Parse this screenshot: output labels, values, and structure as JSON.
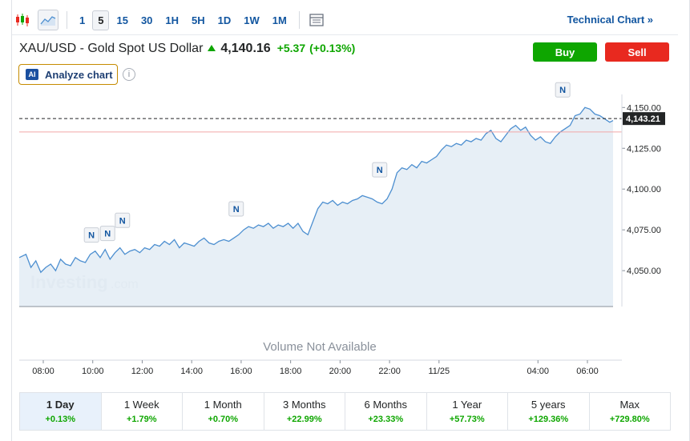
{
  "toolbar": {
    "timeframes": [
      "1",
      "5",
      "15",
      "30",
      "1H",
      "5H",
      "1D",
      "1W",
      "1M"
    ],
    "active_timeframe": "5",
    "technical_chart_label": "Technical Chart »"
  },
  "header": {
    "instrument": "XAU/USD - Gold Spot US Dollar",
    "price": "4,140.16",
    "change": "+5.37",
    "change_pct": "(+0.13%)",
    "buy_label": "Buy",
    "sell_label": "Sell",
    "ai_badge": "AI",
    "analyze_label": "Analyze chart",
    "info_icon": "i"
  },
  "colors": {
    "up": "#0ea600",
    "down": "#e8291f",
    "line": "#4d8fd0",
    "area": "#e3ecf5",
    "accent": "#1256a0"
  },
  "chart_data": {
    "type": "area",
    "x_ticks": [
      "08:00",
      "10:00",
      "12:00",
      "14:00",
      "16:00",
      "18:00",
      "20:00",
      "22:00",
      "11/25",
      "04:00",
      "06:00"
    ],
    "x_tick_hours": [
      0,
      2,
      4,
      6,
      8,
      10,
      12,
      14,
      16,
      20,
      22
    ],
    "y_ticks": [
      4050,
      4075,
      4100,
      4125,
      4150
    ],
    "y_tick_labels": [
      "4,050.00",
      "4,075.00",
      "4,100.00",
      "4,125.00",
      "4,150.00"
    ],
    "ylim": [
      4028,
      4158
    ],
    "current_price": 4143.21,
    "current_price_label": "4,143.21",
    "reference_line": 4135,
    "watermark": [
      "Investing",
      ".com"
    ],
    "volume_text": "Volume Not Available",
    "news_marker_label": "N",
    "news_markers": [
      [
        1.95,
        4063
      ],
      [
        2.6,
        4064
      ],
      [
        3.2,
        4072
      ],
      [
        7.8,
        4079
      ],
      [
        13.6,
        4103
      ],
      [
        21.0,
        4152
      ]
    ],
    "series": [
      {
        "points": [
          [
            -0.9,
            4058
          ],
          [
            -0.7,
            4060
          ],
          [
            -0.5,
            4052
          ],
          [
            -0.3,
            4056
          ],
          [
            -0.1,
            4049
          ],
          [
            0.1,
            4052
          ],
          [
            0.3,
            4054
          ],
          [
            0.5,
            4050
          ],
          [
            0.7,
            4057
          ],
          [
            0.9,
            4054
          ],
          [
            1.1,
            4053
          ],
          [
            1.3,
            4058
          ],
          [
            1.5,
            4056
          ],
          [
            1.7,
            4055
          ],
          [
            1.9,
            4060
          ],
          [
            2.1,
            4062
          ],
          [
            2.3,
            4058
          ],
          [
            2.5,
            4063
          ],
          [
            2.7,
            4057
          ],
          [
            2.9,
            4061
          ],
          [
            3.1,
            4064
          ],
          [
            3.3,
            4060
          ],
          [
            3.5,
            4062
          ],
          [
            3.7,
            4063
          ],
          [
            3.9,
            4061
          ],
          [
            4.1,
            4064
          ],
          [
            4.3,
            4063
          ],
          [
            4.5,
            4066
          ],
          [
            4.7,
            4065
          ],
          [
            4.9,
            4068
          ],
          [
            5.1,
            4066
          ],
          [
            5.3,
            4069
          ],
          [
            5.5,
            4064
          ],
          [
            5.7,
            4067
          ],
          [
            5.9,
            4066
          ],
          [
            6.1,
            4065
          ],
          [
            6.3,
            4068
          ],
          [
            6.5,
            4070
          ],
          [
            6.7,
            4067
          ],
          [
            6.9,
            4066
          ],
          [
            7.1,
            4068
          ],
          [
            7.3,
            4069
          ],
          [
            7.5,
            4068
          ],
          [
            7.7,
            4070
          ],
          [
            7.9,
            4072
          ],
          [
            8.1,
            4075
          ],
          [
            8.3,
            4077
          ],
          [
            8.5,
            4076
          ],
          [
            8.7,
            4078
          ],
          [
            8.9,
            4077
          ],
          [
            9.1,
            4079
          ],
          [
            9.3,
            4076
          ],
          [
            9.5,
            4078
          ],
          [
            9.7,
            4077
          ],
          [
            9.9,
            4079
          ],
          [
            10.1,
            4076
          ],
          [
            10.3,
            4079
          ],
          [
            10.5,
            4074
          ],
          [
            10.7,
            4072
          ],
          [
            10.9,
            4080
          ],
          [
            11.1,
            4088
          ],
          [
            11.3,
            4092
          ],
          [
            11.5,
            4091
          ],
          [
            11.7,
            4093
          ],
          [
            11.9,
            4090
          ],
          [
            12.1,
            4092
          ],
          [
            12.3,
            4091
          ],
          [
            12.5,
            4093
          ],
          [
            12.7,
            4094
          ],
          [
            12.9,
            4096
          ],
          [
            13.1,
            4095
          ],
          [
            13.3,
            4094
          ],
          [
            13.5,
            4092
          ],
          [
            13.7,
            4091
          ],
          [
            13.9,
            4094
          ],
          [
            14.1,
            4100
          ],
          [
            14.3,
            4110
          ],
          [
            14.5,
            4113
          ],
          [
            14.7,
            4112
          ],
          [
            14.9,
            4115
          ],
          [
            15.1,
            4113
          ],
          [
            15.3,
            4117
          ],
          [
            15.5,
            4116
          ],
          [
            15.7,
            4118
          ],
          [
            15.9,
            4120
          ],
          [
            16.1,
            4124
          ],
          [
            16.3,
            4127
          ],
          [
            16.5,
            4126
          ],
          [
            16.7,
            4128
          ],
          [
            16.9,
            4127
          ],
          [
            17.1,
            4130
          ],
          [
            17.3,
            4129
          ],
          [
            17.5,
            4131
          ],
          [
            17.7,
            4130
          ],
          [
            17.9,
            4134
          ],
          [
            18.1,
            4136
          ],
          [
            18.3,
            4131
          ],
          [
            18.5,
            4129
          ],
          [
            18.7,
            4133
          ],
          [
            18.9,
            4137
          ],
          [
            19.1,
            4139
          ],
          [
            19.3,
            4136
          ],
          [
            19.5,
            4138
          ],
          [
            19.7,
            4133
          ],
          [
            19.9,
            4130
          ],
          [
            20.1,
            4132
          ],
          [
            20.3,
            4129
          ],
          [
            20.5,
            4128
          ],
          [
            20.7,
            4132
          ],
          [
            20.9,
            4135
          ],
          [
            21.1,
            4137
          ],
          [
            21.3,
            4139
          ],
          [
            21.5,
            4145
          ],
          [
            21.7,
            4146
          ],
          [
            21.9,
            4150
          ],
          [
            22.1,
            4149
          ],
          [
            22.3,
            4146
          ],
          [
            22.5,
            4145
          ],
          [
            22.7,
            4143
          ],
          [
            22.9,
            4141
          ],
          [
            23.0,
            4142
          ]
        ]
      }
    ]
  },
  "periods": [
    {
      "label": "1 Day",
      "value": "+0.13%",
      "active": true
    },
    {
      "label": "1 Week",
      "value": "+1.79%",
      "active": false
    },
    {
      "label": "1 Month",
      "value": "+0.70%",
      "active": false
    },
    {
      "label": "3 Months",
      "value": "+22.99%",
      "active": false
    },
    {
      "label": "6 Months",
      "value": "+23.33%",
      "active": false
    },
    {
      "label": "1 Year",
      "value": "+57.73%",
      "active": false
    },
    {
      "label": "5 years",
      "value": "+129.36%",
      "active": false
    },
    {
      "label": "Max",
      "value": "+729.80%",
      "active": false
    }
  ]
}
